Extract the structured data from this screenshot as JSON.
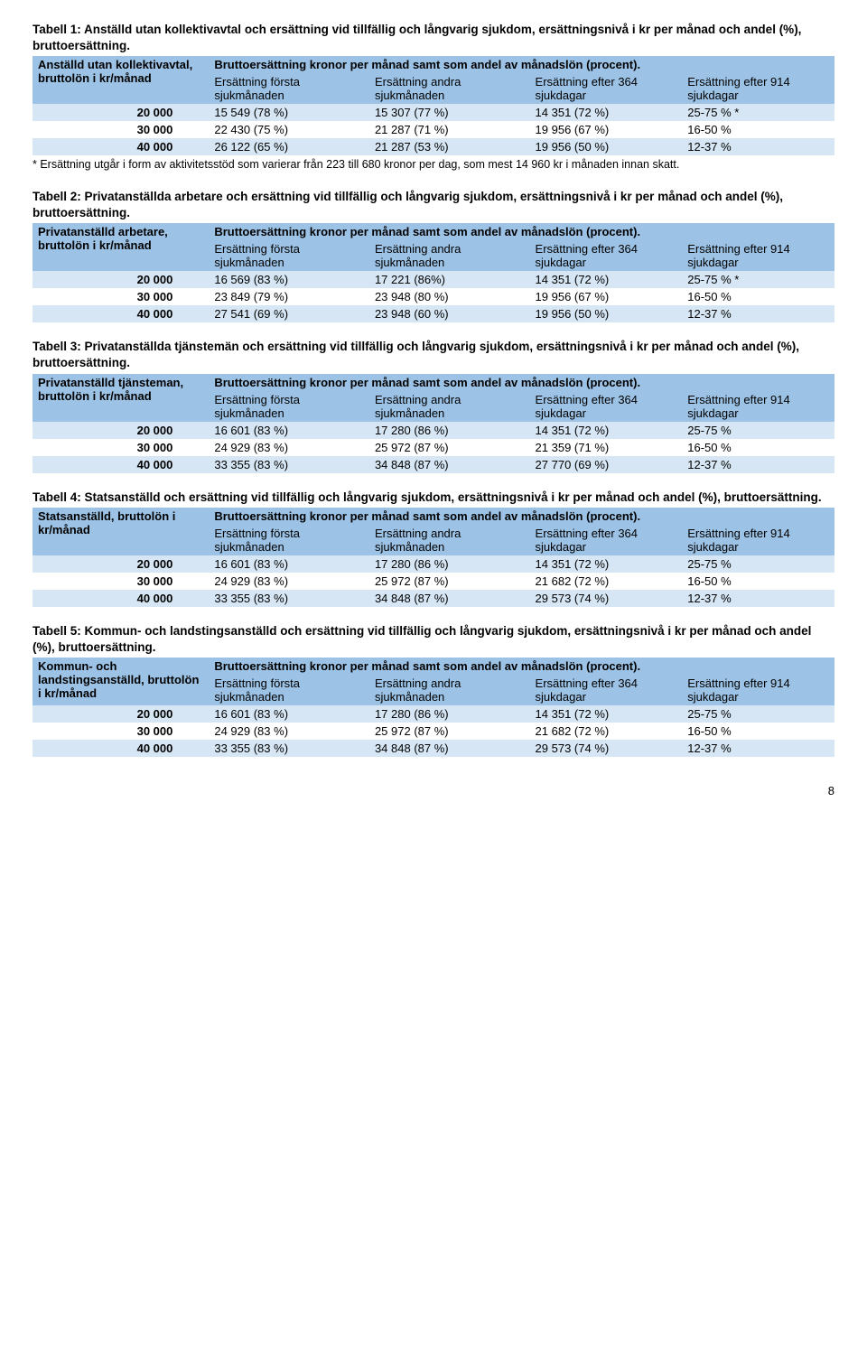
{
  "colors": {
    "header_bg": "#9cc2e5",
    "row_alt_bg": "#d6e6f4",
    "row_bg": "#ffffff",
    "text": "#000000"
  },
  "common": {
    "header_span_label": "Bruttoersättning kronor per månad samt som andel av månadslön (procent).",
    "subcols": [
      "Ersättning första sjukmånaden",
      "Ersättning andra sjukmånaden",
      "Ersättning efter 364 sjukdagar",
      "Ersättning efter 914 sjukdagar"
    ]
  },
  "tables": [
    {
      "caption": "Tabell 1: Anställd utan kollektivavtal och ersättning vid tillfällig och långvarig sjukdom, ersättningsnivå i kr per månad och andel (%), bruttoersättning.",
      "row_header": "Anställd utan kollektivavtal, bruttolön i kr/månad",
      "rows": [
        [
          "20 000",
          "15 549 (78 %)",
          "15 307 (77 %)",
          "14 351 (72 %)",
          "25-75 % *"
        ],
        [
          "30 000",
          "22 430 (75 %)",
          "21 287 (71 %)",
          "19 956 (67 %)",
          "16-50 %"
        ],
        [
          "40 000",
          "26 122 (65 %)",
          "21 287 (53 %)",
          "19 956 (50 %)",
          "12-37 %"
        ]
      ],
      "footnote": "* Ersättning utgår i form av aktivitetsstöd som varierar från 223 till 680 kronor per dag, som mest 14 960 kr i månaden innan skatt."
    },
    {
      "caption": "Tabell 2: Privatanställda arbetare och ersättning vid tillfällig och långvarig sjukdom, ersättningsnivå i kr per månad och andel (%), bruttoersättning.",
      "row_header": "Privatanställd arbetare, bruttolön i kr/månad",
      "rows": [
        [
          "20 000",
          "16 569 (83 %)",
          "17 221 (86%)",
          "14 351 (72 %)",
          "25-75 % *"
        ],
        [
          "30 000",
          "23 849 (79 %)",
          "23 948 (80 %)",
          "19 956 (67 %)",
          "16-50 %"
        ],
        [
          "40 000",
          "27 541 (69 %)",
          "23 948 (60 %)",
          "19 956 (50 %)",
          "12-37 %"
        ]
      ]
    },
    {
      "caption": "Tabell 3: Privatanställda tjänstemän och ersättning vid tillfällig och långvarig sjukdom, ersättningsnivå i kr per månad och andel (%), bruttoersättning.",
      "row_header": "Privatanställd tjänsteman, bruttolön i kr/månad",
      "rows": [
        [
          "20 000",
          "16 601 (83 %)",
          "17 280 (86 %)",
          "14 351 (72 %)",
          "25-75 %"
        ],
        [
          "30 000",
          "24 929 (83 %)",
          "25 972 (87 %)",
          "21 359 (71 %)",
          "16-50 %"
        ],
        [
          "40 000",
          "33 355 (83 %)",
          "34 848 (87 %)",
          "27 770 (69 %)",
          "12-37 %"
        ]
      ]
    },
    {
      "caption": "Tabell 4: Statsanställd och ersättning vid tillfällig och långvarig sjukdom, ersättningsnivå i kr per månad och andel (%), bruttoersättning.",
      "row_header": "Statsanställd, bruttolön i kr/månad",
      "rows": [
        [
          "20 000",
          "16 601 (83 %)",
          "17 280 (86 %)",
          "14 351 (72 %)",
          "25-75 %"
        ],
        [
          "30 000",
          "24 929 (83 %)",
          "25 972 (87 %)",
          "21 682 (72 %)",
          "16-50 %"
        ],
        [
          "40 000",
          "33 355 (83 %)",
          "34 848 (87 %)",
          "29 573 (74 %)",
          "12-37 %"
        ]
      ]
    },
    {
      "caption": "Tabell 5: Kommun- och landstingsanställd och ersättning vid tillfällig och långvarig sjukdom, ersättningsnivå i kr per månad och andel (%), bruttoersättning.",
      "row_header": "Kommun- och landstingsanställd, bruttolön i kr/månad",
      "rows": [
        [
          "20 000",
          "16 601 (83 %)",
          "17 280 (86 %)",
          "14 351 (72 %)",
          "25-75 %"
        ],
        [
          "30 000",
          "24 929 (83 %)",
          "25 972 (87 %)",
          "21 682 (72 %)",
          "16-50 %"
        ],
        [
          "40 000",
          "33 355 (83 %)",
          "34 848 (87 %)",
          "29 573 (74 %)",
          "12-37 %"
        ]
      ]
    }
  ],
  "page_number": "8"
}
